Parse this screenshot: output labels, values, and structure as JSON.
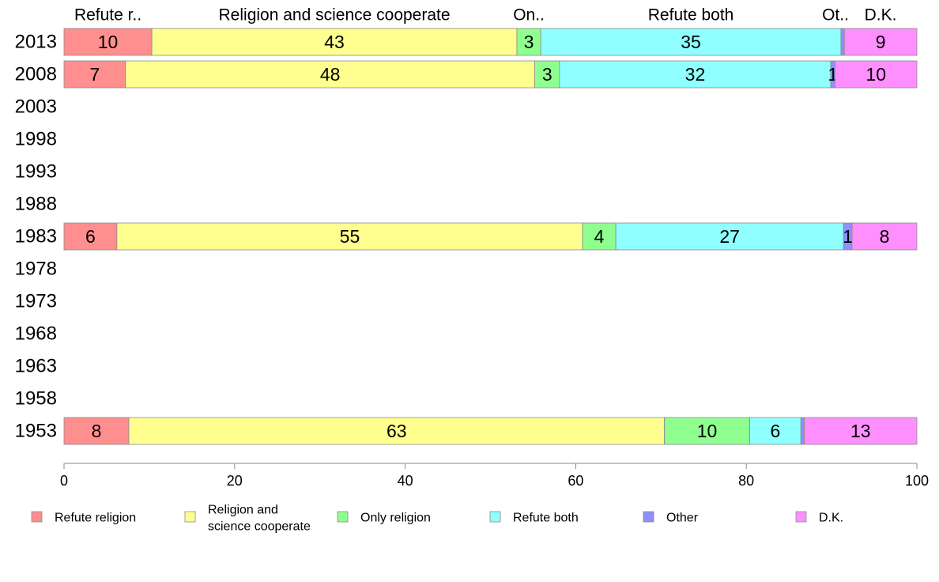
{
  "chart_data": {
    "type": "bar",
    "orientation": "horizontal",
    "stacked": true,
    "title": "",
    "xlabel": "",
    "ylabel": "",
    "xlim": [
      0,
      100
    ],
    "x_ticks": [
      "0",
      "20",
      "40",
      "60",
      "80",
      "100"
    ],
    "x_tick_values": [
      0,
      20,
      40,
      60,
      80,
      100
    ],
    "categories": [
      "2013",
      "2008",
      "2003",
      "1998",
      "1993",
      "1988",
      "1983",
      "1978",
      "1973",
      "1968",
      "1963",
      "1958",
      "1953"
    ],
    "series": [
      {
        "name": "Refute religion",
        "top_label": "Refute r..",
        "legend_label": [
          "Refute religion"
        ],
        "color": "#FF8F8F",
        "values": [
          10.3,
          7.2,
          null,
          null,
          null,
          null,
          6.2,
          null,
          null,
          null,
          null,
          null,
          7.6
        ],
        "labels": [
          "10",
          "7",
          "",
          "",
          "",
          "",
          "6",
          "",
          "",
          "",
          "",
          "",
          "8"
        ]
      },
      {
        "name": "Religion and science cooperate",
        "top_label": "Religion and science cooperate",
        "legend_label": [
          "Religion and",
          "science cooperate"
        ],
        "color": "#FFFF8F",
        "values": [
          42.8,
          48.0,
          null,
          null,
          null,
          null,
          54.6,
          null,
          null,
          null,
          null,
          null,
          62.8
        ],
        "labels": [
          "43",
          "48",
          "",
          "",
          "",
          "",
          "55",
          "",
          "",
          "",
          "",
          "",
          "63"
        ]
      },
      {
        "name": "Only religion",
        "top_label": "On..",
        "legend_label": [
          "Only religion"
        ],
        "color": "#8FFF8F",
        "values": [
          2.8,
          2.9,
          null,
          null,
          null,
          null,
          3.9,
          null,
          null,
          null,
          null,
          null,
          10.0
        ],
        "labels": [
          "3",
          "3",
          "",
          "",
          "",
          "",
          "4",
          "",
          "",
          "",
          "",
          "",
          "10"
        ]
      },
      {
        "name": "Refute both",
        "top_label": "Refute both",
        "legend_label": [
          "Refute both"
        ],
        "color": "#8FFFFF",
        "values": [
          35.2,
          31.8,
          null,
          null,
          null,
          null,
          26.7,
          null,
          null,
          null,
          null,
          null,
          6.0
        ],
        "labels": [
          "35",
          "32",
          "",
          "",
          "",
          "",
          "27",
          "",
          "",
          "",
          "",
          "",
          "6"
        ]
      },
      {
        "name": "Other",
        "top_label": "Ot..",
        "legend_label": [
          "Other"
        ],
        "color": "#8F8FFF",
        "values": [
          0.4,
          0.5,
          null,
          null,
          null,
          null,
          1.0,
          null,
          null,
          null,
          null,
          null,
          0.4
        ],
        "labels": [
          "",
          "1",
          "",
          "",
          "",
          "",
          "1",
          "",
          "",
          "",
          "",
          "",
          ""
        ]
      },
      {
        "name": "D.K.",
        "top_label": "D.K.",
        "legend_label": [
          "D.K."
        ],
        "color": "#FF8FFF",
        "values": [
          8.5,
          9.6,
          null,
          null,
          null,
          null,
          7.6,
          null,
          null,
          null,
          null,
          null,
          13.2
        ],
        "labels": [
          "9",
          "10",
          "",
          "",
          "",
          "",
          "8",
          "",
          "",
          "",
          "",
          "",
          "13"
        ]
      }
    ],
    "legend": "bottom",
    "grid": false
  }
}
